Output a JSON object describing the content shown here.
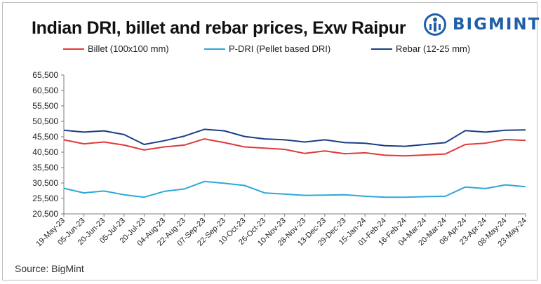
{
  "title": "Indian DRI, billet and rebar prices, Exw Raipur",
  "brand": {
    "name": "BIGMINT",
    "color": "#1f5faa",
    "icon": "bigmint-logo-icon"
  },
  "source": "Source: BigMint",
  "chart_data": {
    "type": "line",
    "title": "Indian DRI, billet and rebar prices, Exw Raipur",
    "ylim": [
      20500,
      65500
    ],
    "ytick_values": [
      20500,
      25500,
      30500,
      35500,
      40500,
      45500,
      50500,
      55500,
      60500,
      65500
    ],
    "ytick_labels": [
      "20,500",
      "25,500",
      "30,500",
      "35,500",
      "40,500",
      "45,500",
      "50,500",
      "55,500",
      "60,500",
      "65,500"
    ],
    "legend_position": "top",
    "grid": false,
    "x": [
      "19-May-23",
      "05-Jun-23",
      "20-Jun-23",
      "05-Jul-23",
      "20-Jul-23",
      "04-Aug-23",
      "22-Aug-23",
      "07-Sep-23",
      "22-Sep-23",
      "10-Oct-23",
      "26-Oct-23",
      "10-Nov-23",
      "28-Nov-23",
      "13-Dec-23",
      "29-Dec-23",
      "15-Jan-24",
      "01-Feb-24",
      "16-Feb-24",
      "04-Mar-24",
      "20-Mar-24",
      "08-Apr-24",
      "23-Apr-24",
      "08-May-24",
      "23-May-24"
    ],
    "series": [
      {
        "name": "Billet (100x100 mm)",
        "color": "#e03a3a",
        "values": [
          44500,
          43200,
          43800,
          42800,
          41200,
          42200,
          42800,
          44800,
          43600,
          42200,
          41800,
          41400,
          40100,
          40900,
          40000,
          40300,
          39500,
          39300,
          39600,
          39900,
          43000,
          43400,
          44600,
          44300
        ]
      },
      {
        "name": "P-DRI (Pellet based DRI)",
        "color": "#2ea8d8",
        "values": [
          28800,
          27300,
          27900,
          26700,
          25900,
          27800,
          28600,
          31000,
          30400,
          29700,
          27300,
          26900,
          26500,
          26600,
          26700,
          26200,
          25900,
          25900,
          26100,
          26200,
          29200,
          28700,
          29900,
          29300
        ]
      },
      {
        "name": "Rebar (12-25 mm)",
        "color": "#1a3e86",
        "values": [
          47600,
          47000,
          47400,
          46200,
          43000,
          44200,
          45700,
          47900,
          47400,
          45600,
          44800,
          44500,
          43800,
          44500,
          43600,
          43400,
          42600,
          42400,
          43000,
          43600,
          47500,
          47000,
          47600,
          47700
        ]
      }
    ]
  }
}
